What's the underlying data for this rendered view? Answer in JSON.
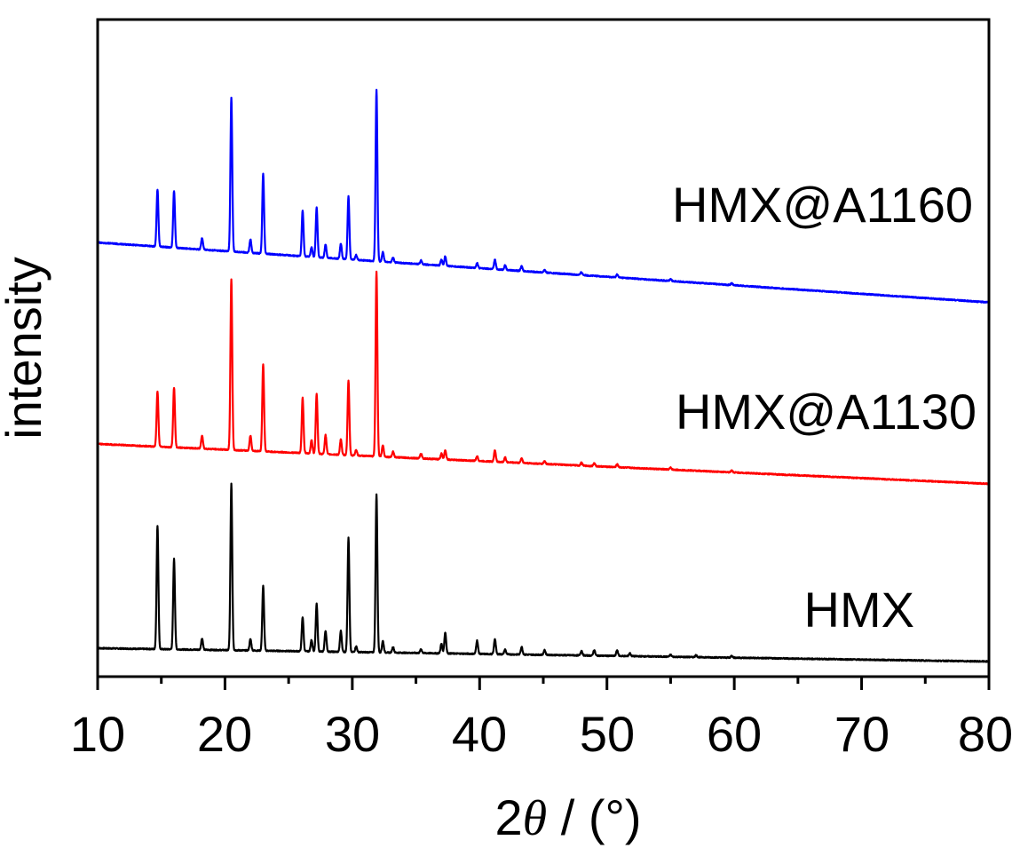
{
  "chart_data": {
    "type": "line",
    "xlabel_parts": [
      "2",
      "θ",
      " / (°)"
    ],
    "ylabel": "intensity",
    "xlim": [
      10,
      80
    ],
    "x_ticks": [
      "10",
      "20",
      "30",
      "40",
      "50",
      "60",
      "70",
      "80"
    ],
    "y_ticks": false,
    "grid": false,
    "legend": "none",
    "series": [
      {
        "name": "HMX",
        "color": "#000000",
        "baseline": 0.0,
        "baseline_slope": -0.0002,
        "peaks": [
          {
            "x": 14.7,
            "h": 1.3
          },
          {
            "x": 16.0,
            "h": 0.95
          },
          {
            "x": 18.2,
            "h": 0.12
          },
          {
            "x": 20.5,
            "h": 1.75
          },
          {
            "x": 22.0,
            "h": 0.12
          },
          {
            "x": 23.0,
            "h": 0.68
          },
          {
            "x": 26.1,
            "h": 0.36
          },
          {
            "x": 26.8,
            "h": 0.12
          },
          {
            "x": 27.2,
            "h": 0.5
          },
          {
            "x": 27.9,
            "h": 0.22
          },
          {
            "x": 29.1,
            "h": 0.22
          },
          {
            "x": 29.7,
            "h": 1.2
          },
          {
            "x": 30.3,
            "h": 0.06
          },
          {
            "x": 31.9,
            "h": 1.66
          },
          {
            "x": 32.4,
            "h": 0.12
          },
          {
            "x": 33.2,
            "h": 0.06
          },
          {
            "x": 35.4,
            "h": 0.04
          },
          {
            "x": 37.0,
            "h": 0.1
          },
          {
            "x": 37.3,
            "h": 0.22
          },
          {
            "x": 39.8,
            "h": 0.14
          },
          {
            "x": 41.2,
            "h": 0.16
          },
          {
            "x": 42.0,
            "h": 0.05
          },
          {
            "x": 43.3,
            "h": 0.08
          },
          {
            "x": 45.1,
            "h": 0.05
          },
          {
            "x": 48.0,
            "h": 0.05
          },
          {
            "x": 49.0,
            "h": 0.06
          },
          {
            "x": 50.8,
            "h": 0.06
          },
          {
            "x": 51.8,
            "h": 0.03
          },
          {
            "x": 55.0,
            "h": 0.02
          },
          {
            "x": 57.0,
            "h": 0.02
          },
          {
            "x": 59.8,
            "h": 0.02
          }
        ]
      },
      {
        "name": "HMX@A1130",
        "color": "#ff0000",
        "baseline": 2.15,
        "baseline_slope": -0.0006,
        "peaks": [
          {
            "x": 14.7,
            "h": 0.58
          },
          {
            "x": 16.0,
            "h": 0.63
          },
          {
            "x": 18.2,
            "h": 0.14
          },
          {
            "x": 20.5,
            "h": 1.8
          },
          {
            "x": 22.0,
            "h": 0.16
          },
          {
            "x": 23.0,
            "h": 0.92
          },
          {
            "x": 26.1,
            "h": 0.58
          },
          {
            "x": 26.8,
            "h": 0.14
          },
          {
            "x": 27.2,
            "h": 0.63
          },
          {
            "x": 27.9,
            "h": 0.2
          },
          {
            "x": 29.1,
            "h": 0.16
          },
          {
            "x": 29.7,
            "h": 0.78
          },
          {
            "x": 30.3,
            "h": 0.06
          },
          {
            "x": 31.9,
            "h": 1.95
          },
          {
            "x": 32.4,
            "h": 0.12
          },
          {
            "x": 33.2,
            "h": 0.06
          },
          {
            "x": 35.4,
            "h": 0.05
          },
          {
            "x": 37.0,
            "h": 0.06
          },
          {
            "x": 37.3,
            "h": 0.1
          },
          {
            "x": 39.8,
            "h": 0.05
          },
          {
            "x": 41.2,
            "h": 0.12
          },
          {
            "x": 42.0,
            "h": 0.05
          },
          {
            "x": 43.3,
            "h": 0.05
          },
          {
            "x": 45.1,
            "h": 0.03
          },
          {
            "x": 48.0,
            "h": 0.03
          },
          {
            "x": 49.0,
            "h": 0.03
          },
          {
            "x": 50.8,
            "h": 0.03
          },
          {
            "x": 55.0,
            "h": 0.02
          },
          {
            "x": 59.8,
            "h": 0.02
          }
        ]
      },
      {
        "name": "HMX@A1160",
        "color": "#0000ff",
        "baseline": 4.27,
        "baseline_slope": -0.0009,
        "peaks": [
          {
            "x": 14.7,
            "h": 0.6
          },
          {
            "x": 16.0,
            "h": 0.6
          },
          {
            "x": 18.2,
            "h": 0.12
          },
          {
            "x": 20.5,
            "h": 1.62
          },
          {
            "x": 22.0,
            "h": 0.14
          },
          {
            "x": 23.0,
            "h": 0.84
          },
          {
            "x": 26.1,
            "h": 0.48
          },
          {
            "x": 26.8,
            "h": 0.1
          },
          {
            "x": 27.2,
            "h": 0.52
          },
          {
            "x": 27.9,
            "h": 0.14
          },
          {
            "x": 29.1,
            "h": 0.16
          },
          {
            "x": 29.7,
            "h": 0.66
          },
          {
            "x": 30.3,
            "h": 0.05
          },
          {
            "x": 31.9,
            "h": 1.8
          },
          {
            "x": 32.4,
            "h": 0.1
          },
          {
            "x": 33.2,
            "h": 0.05
          },
          {
            "x": 35.4,
            "h": 0.04
          },
          {
            "x": 37.0,
            "h": 0.06
          },
          {
            "x": 37.3,
            "h": 0.1
          },
          {
            "x": 39.8,
            "h": 0.05
          },
          {
            "x": 41.2,
            "h": 0.1
          },
          {
            "x": 42.0,
            "h": 0.05
          },
          {
            "x": 43.3,
            "h": 0.05
          },
          {
            "x": 45.1,
            "h": 0.03
          },
          {
            "x": 48.0,
            "h": 0.03
          },
          {
            "x": 50.8,
            "h": 0.03
          },
          {
            "x": 55.0,
            "h": 0.02
          },
          {
            "x": 59.8,
            "h": 0.02
          }
        ]
      }
    ]
  }
}
